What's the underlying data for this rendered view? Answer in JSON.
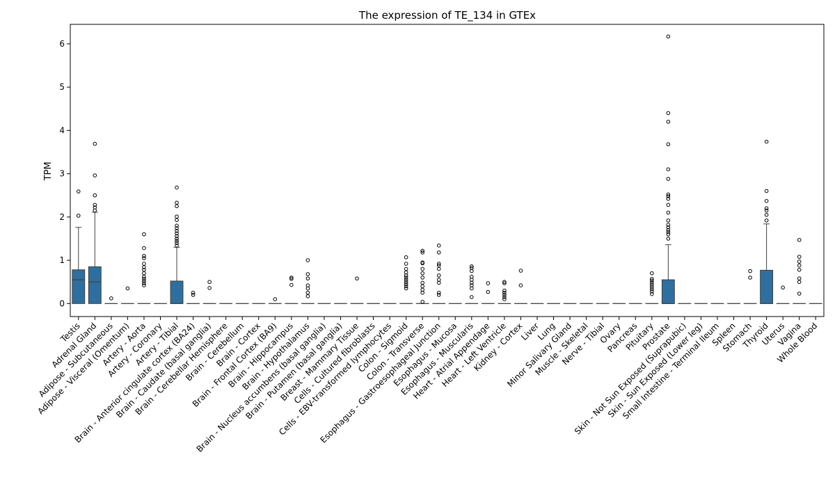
{
  "chart_data": {
    "type": "box",
    "title": "The expression of TE_134 in GTEx",
    "xlabel": "",
    "ylabel": "TPM",
    "ylim": [
      -0.3,
      6.45
    ],
    "yticks": [
      0,
      1,
      2,
      3,
      4,
      5,
      6
    ],
    "box_color": "#2f6f9f",
    "grid": false,
    "categories": [
      "Testis",
      "Adrenal Gland",
      "Adipose - Subcutaneous",
      "Adipose - Visceral (Omentum)",
      "Artery - Aorta",
      "Artery - Coronary",
      "Artery - Tibial",
      "Brain - Anterior cingulate cortex (BA24)",
      "Brain - Caudate (basal ganglia)",
      "Brain - Cerebellar Hemisphere",
      "Brain - Cerebellum",
      "Brain - Cortex",
      "Brain - Frontal Cortex (BA9)",
      "Brain - Hippocampus",
      "Brain - Hypothalamus",
      "Brain - Nucleus accumbens (basal ganglia)",
      "Brain - Putamen (basal ganglia)",
      "Breast - Mammary Tissue",
      "Cells - Cultured fibroblasts",
      "Cells - EBV-transformed lymphocytes",
      "Colon - Sigmoid",
      "Colon - Transverse",
      "Esophagus - Gastroesophageal Junction",
      "Esophagus - Mucosa",
      "Esophagus - Muscularis",
      "Heart - Atrial Appendage",
      "Heart - Left Ventricle",
      "Kidney - Cortex",
      "Liver",
      "Lung",
      "Minor Salivary Gland",
      "Muscle - Skeletal",
      "Nerve - Tibial",
      "Ovary",
      "Pancreas",
      "Pituitary",
      "Prostate",
      "Skin - Not Sun Exposed (Suprapubic)",
      "Skin - Sun Exposed (Lower leg)",
      "Small Intestine - Terminal Ileum",
      "Spleen",
      "Stomach",
      "Thyroid",
      "Uterus",
      "Vagina",
      "Whole Blood"
    ],
    "boxes": [
      {
        "q1": 0,
        "median": 0.55,
        "q3": 0.78,
        "whisker_low": 0,
        "whisker_high": 1.76,
        "outliers": [
          2.03,
          2.59
        ]
      },
      {
        "q1": 0,
        "median": 0.5,
        "q3": 0.85,
        "whisker_low": 0,
        "whisker_high": 2.11,
        "outliers": [
          2.15,
          2.22,
          2.28,
          2.5,
          2.96,
          3.69
        ]
      },
      {
        "q1": 0,
        "median": 0,
        "q3": 0,
        "whisker_low": 0,
        "whisker_high": 0,
        "outliers": [
          0.12
        ]
      },
      {
        "q1": 0,
        "median": 0,
        "q3": 0,
        "whisker_low": 0,
        "whisker_high": 0,
        "outliers": [
          0.35
        ]
      },
      {
        "q1": 0,
        "median": 0,
        "q3": 0,
        "whisker_low": 0,
        "whisker_high": 0,
        "outliers": [
          0.42,
          0.47,
          0.52,
          0.57,
          0.62,
          0.7,
          0.78,
          0.84,
          0.92,
          1.05,
          1.1,
          1.28,
          1.6
        ]
      },
      {
        "q1": 0,
        "median": 0,
        "q3": 0,
        "whisker_low": 0,
        "whisker_high": 0,
        "outliers": []
      },
      {
        "q1": 0,
        "median": 0,
        "q3": 0.52,
        "whisker_low": 0,
        "whisker_high": 1.3,
        "outliers": [
          1.34,
          1.4,
          1.45,
          1.5,
          1.56,
          1.62,
          1.68,
          1.74,
          1.8,
          1.93,
          2.01,
          2.25,
          2.33,
          2.68
        ]
      },
      {
        "q1": 0,
        "median": 0,
        "q3": 0,
        "whisker_low": 0,
        "whisker_high": 0,
        "outliers": [
          0.2,
          0.25
        ]
      },
      {
        "q1": 0,
        "median": 0,
        "q3": 0,
        "whisker_low": 0,
        "whisker_high": 0,
        "outliers": [
          0.36,
          0.5
        ]
      },
      {
        "q1": 0,
        "median": 0,
        "q3": 0,
        "whisker_low": 0,
        "whisker_high": 0,
        "outliers": []
      },
      {
        "q1": 0,
        "median": 0,
        "q3": 0,
        "whisker_low": 0,
        "whisker_high": 0,
        "outliers": []
      },
      {
        "q1": 0,
        "median": 0,
        "q3": 0,
        "whisker_low": 0,
        "whisker_high": 0,
        "outliers": []
      },
      {
        "q1": 0,
        "median": 0,
        "q3": 0,
        "whisker_low": 0,
        "whisker_high": 0,
        "outliers": [
          0.1
        ]
      },
      {
        "q1": 0,
        "median": 0,
        "q3": 0,
        "whisker_low": 0,
        "whisker_high": 0,
        "outliers": [
          0.43,
          0.57,
          0.6
        ]
      },
      {
        "q1": 0,
        "median": 0,
        "q3": 0,
        "whisker_low": 0,
        "whisker_high": 0,
        "outliers": [
          0.17,
          0.25,
          0.35,
          0.42,
          0.58,
          0.68,
          1.0
        ]
      },
      {
        "q1": 0,
        "median": 0,
        "q3": 0,
        "whisker_low": 0,
        "whisker_high": 0,
        "outliers": []
      },
      {
        "q1": 0,
        "median": 0,
        "q3": 0,
        "whisker_low": 0,
        "whisker_high": 0,
        "outliers": []
      },
      {
        "q1": 0,
        "median": 0,
        "q3": 0,
        "whisker_low": 0,
        "whisker_high": 0,
        "outliers": [
          0.58
        ]
      },
      {
        "q1": 0,
        "median": 0,
        "q3": 0,
        "whisker_low": 0,
        "whisker_high": 0,
        "outliers": []
      },
      {
        "q1": 0,
        "median": 0,
        "q3": 0,
        "whisker_low": 0,
        "whisker_high": 0,
        "outliers": []
      },
      {
        "q1": 0,
        "median": 0,
        "q3": 0,
        "whisker_low": 0,
        "whisker_high": 0,
        "outliers": [
          0.35,
          0.4,
          0.45,
          0.5,
          0.55,
          0.6,
          0.65,
          0.72,
          0.8,
          0.92,
          1.07
        ]
      },
      {
        "q1": 0,
        "median": 0,
        "q3": 0,
        "whisker_low": 0,
        "whisker_high": 0,
        "outliers": [
          0.04,
          0.25,
          0.32,
          0.4,
          0.48,
          0.6,
          0.7,
          0.8,
          0.93,
          0.95,
          1.18,
          1.22
        ]
      },
      {
        "q1": 0,
        "median": 0,
        "q3": 0,
        "whisker_low": 0,
        "whisker_high": 0,
        "outliers": [
          0.2,
          0.25,
          0.48,
          0.55,
          0.65,
          0.8,
          0.88,
          0.92,
          1.18,
          1.34
        ]
      },
      {
        "q1": 0,
        "median": 0,
        "q3": 0,
        "whisker_low": 0,
        "whisker_high": 0,
        "outliers": []
      },
      {
        "q1": 0,
        "median": 0,
        "q3": 0,
        "whisker_low": 0,
        "whisker_high": 0,
        "outliers": [
          0.15,
          0.35,
          0.42,
          0.48,
          0.55,
          0.62,
          0.75,
          0.82,
          0.86
        ]
      },
      {
        "q1": 0,
        "median": 0,
        "q3": 0,
        "whisker_low": 0,
        "whisker_high": 0,
        "outliers": [
          0.27,
          0.47
        ]
      },
      {
        "q1": 0,
        "median": 0,
        "q3": 0,
        "whisker_low": 0,
        "whisker_high": 0,
        "outliers": [
          0.1,
          0.15,
          0.2,
          0.25,
          0.3,
          0.47,
          0.5
        ]
      },
      {
        "q1": 0,
        "median": 0,
        "q3": 0,
        "whisker_low": 0,
        "whisker_high": 0,
        "outliers": [
          0.42,
          0.76
        ]
      },
      {
        "q1": 0,
        "median": 0,
        "q3": 0,
        "whisker_low": 0,
        "whisker_high": 0,
        "outliers": []
      },
      {
        "q1": 0,
        "median": 0,
        "q3": 0,
        "whisker_low": 0,
        "whisker_high": 0,
        "outliers": []
      },
      {
        "q1": 0,
        "median": 0,
        "q3": 0,
        "whisker_low": 0,
        "whisker_high": 0,
        "outliers": []
      },
      {
        "q1": 0,
        "median": 0,
        "q3": 0,
        "whisker_low": 0,
        "whisker_high": 0,
        "outliers": []
      },
      {
        "q1": 0,
        "median": 0,
        "q3": 0,
        "whisker_low": 0,
        "whisker_high": 0,
        "outliers": []
      },
      {
        "q1": 0,
        "median": 0,
        "q3": 0,
        "whisker_low": 0,
        "whisker_high": 0,
        "outliers": []
      },
      {
        "q1": 0,
        "median": 0,
        "q3": 0,
        "whisker_low": 0,
        "whisker_high": 0,
        "outliers": []
      },
      {
        "q1": 0,
        "median": 0,
        "q3": 0,
        "whisker_low": 0,
        "whisker_high": 0,
        "outliers": [
          0.22,
          0.28,
          0.33,
          0.38,
          0.43,
          0.48,
          0.53,
          0.57,
          0.7
        ]
      },
      {
        "q1": 0,
        "median": 0,
        "q3": 0.55,
        "whisker_low": 0,
        "whisker_high": 1.36,
        "outliers": [
          1.5,
          1.6,
          1.65,
          1.7,
          1.76,
          1.82,
          1.92,
          2.1,
          2.28,
          2.42,
          2.48,
          2.52,
          2.88,
          3.1,
          3.68,
          4.2,
          4.4,
          6.17
        ]
      },
      {
        "q1": 0,
        "median": 0,
        "q3": 0,
        "whisker_low": 0,
        "whisker_high": 0,
        "outliers": []
      },
      {
        "q1": 0,
        "median": 0,
        "q3": 0,
        "whisker_low": 0,
        "whisker_high": 0,
        "outliers": []
      },
      {
        "q1": 0,
        "median": 0,
        "q3": 0,
        "whisker_low": 0,
        "whisker_high": 0,
        "outliers": []
      },
      {
        "q1": 0,
        "median": 0,
        "q3": 0,
        "whisker_low": 0,
        "whisker_high": 0,
        "outliers": []
      },
      {
        "q1": 0,
        "median": 0,
        "q3": 0,
        "whisker_low": 0,
        "whisker_high": 0,
        "outliers": [
          0.6,
          0.75
        ]
      },
      {
        "q1": 0,
        "median": 0,
        "q3": 0.77,
        "whisker_low": 0,
        "whisker_high": 1.84,
        "outliers": [
          1.92,
          2.05,
          2.15,
          2.2,
          2.37,
          2.6,
          3.74
        ]
      },
      {
        "q1": 0,
        "median": 0,
        "q3": 0,
        "whisker_low": 0,
        "whisker_high": 0,
        "outliers": [
          0.37
        ]
      },
      {
        "q1": 0,
        "median": 0,
        "q3": 0,
        "whisker_low": 0,
        "whisker_high": 0,
        "outliers": [
          0.23,
          0.5,
          0.58,
          0.78,
          0.88,
          0.97,
          1.08,
          1.47
        ]
      },
      {
        "q1": 0,
        "median": 0,
        "q3": 0,
        "whisker_low": 0,
        "whisker_high": 0,
        "outliers": []
      }
    ]
  }
}
